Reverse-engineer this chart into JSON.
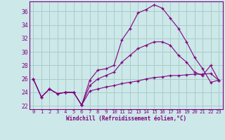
{
  "xlabel": "Windchill (Refroidissement éolien,°C)",
  "background_color": "#cce8e8",
  "grid_color": "#aacccc",
  "line_color": "#800080",
  "spine_color": "#800080",
  "xlim": [
    -0.5,
    23.5
  ],
  "ylim": [
    21.5,
    37.5
  ],
  "yticks": [
    22,
    24,
    26,
    28,
    30,
    32,
    34,
    36
  ],
  "xticks": [
    0,
    1,
    2,
    3,
    4,
    5,
    6,
    7,
    8,
    9,
    10,
    11,
    12,
    13,
    14,
    15,
    16,
    17,
    18,
    19,
    20,
    21,
    22,
    23
  ],
  "series": [
    [
      26,
      23.3,
      24.5,
      23.8,
      24.0,
      24.0,
      22.1,
      25.8,
      27.3,
      27.5,
      28.0,
      31.8,
      33.5,
      35.8,
      36.3,
      37.0,
      36.5,
      35.0,
      33.5,
      31.5,
      29.2,
      27.5,
      25.5,
      25.8
    ],
    [
      26,
      23.3,
      24.5,
      23.8,
      24.0,
      24.0,
      22.1,
      25.0,
      26.0,
      26.5,
      27.0,
      28.5,
      29.5,
      30.5,
      31.0,
      31.5,
      31.5,
      31.0,
      29.5,
      28.5,
      27.0,
      26.5,
      28.0,
      25.8
    ],
    [
      26,
      23.3,
      24.5,
      23.8,
      24.0,
      24.0,
      22.1,
      24.2,
      24.5,
      24.8,
      25.0,
      25.3,
      25.5,
      25.7,
      26.0,
      26.2,
      26.3,
      26.5,
      26.5,
      26.6,
      26.7,
      26.7,
      26.8,
      25.8
    ]
  ]
}
